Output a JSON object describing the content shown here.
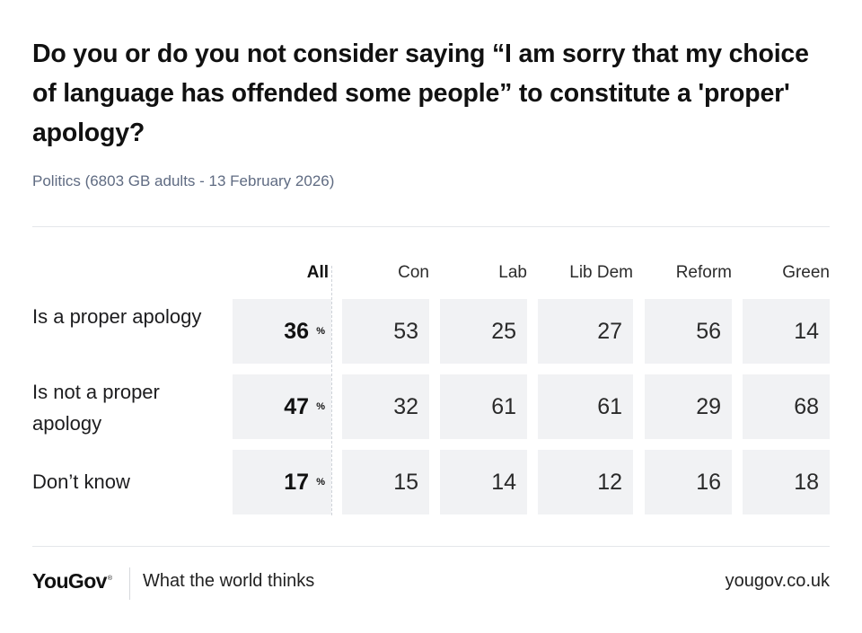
{
  "chart_data": {
    "type": "table",
    "title": "Do you or do you not consider saying “I am sorry that my choice of language has offended some people” to constitute a 'proper' apology?",
    "subtitle": "Politics (6803 GB adults - 13 February 2026)",
    "columns": [
      "All",
      "Con",
      "Lab",
      "Lib Dem",
      "Reform",
      "Green"
    ],
    "all_unit": "%",
    "rows": [
      {
        "label": "Is a proper apology",
        "values": [
          36,
          53,
          25,
          27,
          56,
          14
        ]
      },
      {
        "label": "Is not a proper apology",
        "values": [
          47,
          32,
          61,
          61,
          29,
          68
        ]
      },
      {
        "label": "Don’t know",
        "values": [
          17,
          15,
          14,
          12,
          16,
          18
        ]
      }
    ]
  },
  "footer": {
    "brand": "YouGov",
    "brand_mark": "®",
    "tagline": "What the world thinks",
    "url": "yougov.co.uk"
  },
  "colors": {
    "cell_background": "#f1f2f4",
    "subtitle": "#5f6b82",
    "text": "#1d1d1f"
  }
}
